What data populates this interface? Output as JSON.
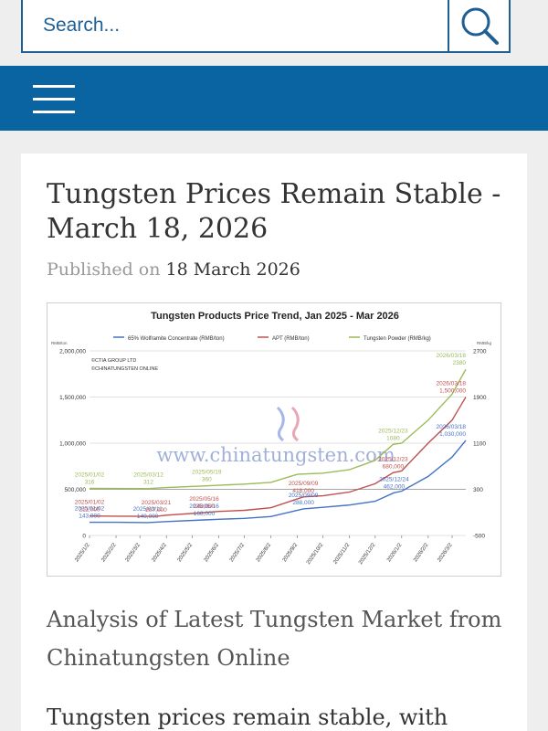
{
  "search": {
    "placeholder": "Search..."
  },
  "article": {
    "title": "Tungsten Prices Remain Stable - March 18, 2026",
    "published_prefix": "Published on",
    "published_date": "18 March 2026",
    "subheading": "Analysis of Latest Tungsten Market from Chinatungsten Online",
    "body_start": "Tungsten prices remain stable, with"
  },
  "chart_data": {
    "type": "line",
    "title": "Tungsten Products Price Trend, Jan 2025 - Mar 2026",
    "ylabel_left": "RMB/ton",
    "ylabel_right": "RMB/kg",
    "y_ticks_left": [
      "2,000,000",
      "1,500,000",
      "1,000,000",
      "500,000",
      "0"
    ],
    "y_ticks_right": [
      "2700",
      "1900",
      "1100",
      "300",
      "-500"
    ],
    "ylim_left": [
      0,
      2000000
    ],
    "ylim_right": [
      -500,
      2700
    ],
    "x_ticks": [
      "2025/1/2",
      "2025/2/2",
      "2025/3/2",
      "2025/4/2",
      "2025/5/2",
      "2025/6/2",
      "2025/7/2",
      "2025/8/2",
      "2025/9/2",
      "2025/10/2",
      "2025/11/2",
      "2025/12/2",
      "2026/1/2",
      "2026/2/2",
      "2026/3/2"
    ],
    "credits": [
      "©CTIA GROUP LTD",
      "©CHINATUNGSTEN ONLINE"
    ],
    "watermark": "www.chinatungsten.com",
    "grid": true,
    "legend_position": "top",
    "series": [
      {
        "name": "65% Wolframite Concentrate (RMB/ton)",
        "axis": "left",
        "color": "#4472c4",
        "points": [
          [
            "2025/1/2",
            143000
          ],
          [
            "2025/2/2",
            143000
          ],
          [
            "2025/3/11",
            140000
          ],
          [
            "2025/4/2",
            150000
          ],
          [
            "2025/5/16",
            168000
          ],
          [
            "2025/6/2",
            175000
          ],
          [
            "2025/7/2",
            185000
          ],
          [
            "2025/8/2",
            205000
          ],
          [
            "2025/9/9",
            288000
          ],
          [
            "2025/10/2",
            305000
          ],
          [
            "2025/11/2",
            330000
          ],
          [
            "2025/12/2",
            370000
          ],
          [
            "2025/12/24",
            462000
          ],
          [
            "2026/1/2",
            480000
          ],
          [
            "2026/2/2",
            640000
          ],
          [
            "2026/3/2",
            850000
          ],
          [
            "2026/3/18",
            1030000
          ]
        ]
      },
      {
        "name": "APT (RMB/ton)",
        "axis": "left",
        "color": "#c0504d",
        "points": [
          [
            "2025/1/2",
            211000
          ],
          [
            "2025/2/2",
            209000
          ],
          [
            "2025/3/21",
            207000
          ],
          [
            "2025/4/2",
            220000
          ],
          [
            "2025/5/16",
            248000
          ],
          [
            "2025/6/2",
            260000
          ],
          [
            "2025/7/2",
            272000
          ],
          [
            "2025/8/2",
            300000
          ],
          [
            "2025/9/9",
            418000
          ],
          [
            "2025/10/2",
            430000
          ],
          [
            "2025/11/2",
            470000
          ],
          [
            "2025/12/2",
            560000
          ],
          [
            "2025/12/23",
            680000
          ],
          [
            "2026/1/2",
            700000
          ],
          [
            "2026/2/2",
            1000000
          ],
          [
            "2026/3/2",
            1250000
          ],
          [
            "2026/3/18",
            1500000
          ]
        ]
      },
      {
        "name": "Tungsten Powder (RMB/kg)",
        "axis": "right",
        "color": "#9bbb59",
        "points": [
          [
            "2025/1/2",
            316
          ],
          [
            "2025/2/2",
            314
          ],
          [
            "2025/3/12",
            312
          ],
          [
            "2025/4/2",
            330
          ],
          [
            "2025/5/19",
            360
          ],
          [
            "2025/6/2",
            370
          ],
          [
            "2025/7/2",
            390
          ],
          [
            "2025/8/2",
            420
          ],
          [
            "2025/9/2",
            560
          ],
          [
            "2025/10/2",
            580
          ],
          [
            "2025/11/2",
            640
          ],
          [
            "2025/12/2",
            800
          ],
          [
            "2025/12/23",
            1080
          ],
          [
            "2026/1/2",
            1100
          ],
          [
            "2026/2/2",
            1500
          ],
          [
            "2026/3/2",
            1950
          ],
          [
            "2026/3/18",
            2380
          ]
        ]
      }
    ],
    "annotations": [
      {
        "series": 0,
        "date": "2025/01/02",
        "value": "143,000"
      },
      {
        "series": 0,
        "date": "2025/03/11",
        "value": "140,000"
      },
      {
        "series": 0,
        "date": "2025/05/16",
        "value": "168,000"
      },
      {
        "series": 0,
        "date": "2025/09/09",
        "value": "288,000"
      },
      {
        "series": 0,
        "date": "2025/12/24",
        "value": "462,000"
      },
      {
        "series": 0,
        "date": "2026/03/18",
        "value": "1,030,000"
      },
      {
        "series": 1,
        "date": "2025/01/02",
        "value": "211,000"
      },
      {
        "series": 1,
        "date": "2025/03/21",
        "value": "207,000"
      },
      {
        "series": 1,
        "date": "2025/05/16",
        "value": "248,000"
      },
      {
        "series": 1,
        "date": "2025/09/09",
        "value": "418,000"
      },
      {
        "series": 1,
        "date": "2025/12/23",
        "value": "680,000"
      },
      {
        "series": 1,
        "date": "2026/03/18",
        "value": "1,500,000"
      },
      {
        "series": 2,
        "date": "2025/01/02",
        "value": "316"
      },
      {
        "series": 2,
        "date": "2025/03/12",
        "value": "312"
      },
      {
        "series": 2,
        "date": "2025/05/19",
        "value": "360"
      },
      {
        "series": 2,
        "date": "2025/12/23",
        "value": "1080"
      },
      {
        "series": 2,
        "date": "2026/03/18",
        "value": "2380"
      }
    ]
  }
}
